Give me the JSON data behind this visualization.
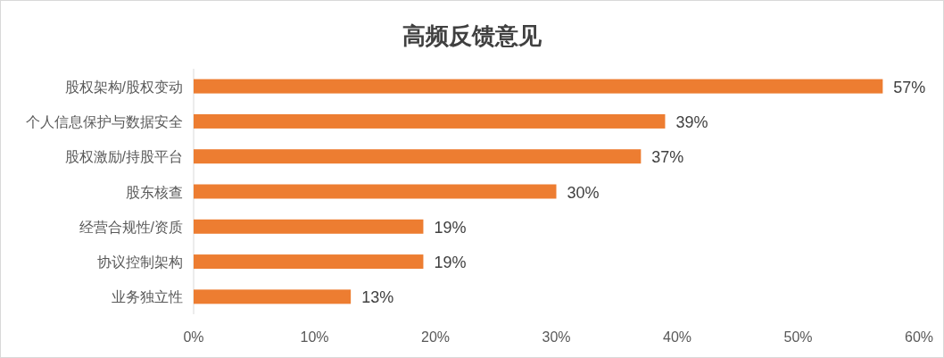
{
  "chart_data": {
    "type": "bar",
    "orientation": "horizontal",
    "title": "高频反馈意见",
    "categories": [
      "股权架构/股权变动",
      "个人信息保护与数据安全",
      "股权激励/持股平台",
      "股东核查",
      "经营合规性/资质",
      "协议控制架构",
      "业务独立性"
    ],
    "values": [
      57,
      39,
      37,
      30,
      19,
      19,
      13
    ],
    "value_labels": [
      "57%",
      "39%",
      "37%",
      "30%",
      "19%",
      "19%",
      "13%"
    ],
    "color": "#ed7d31",
    "xlim": [
      0,
      60
    ],
    "xticks": [
      {
        "value": 0,
        "label": "0%"
      },
      {
        "value": 10,
        "label": "10%"
      },
      {
        "value": 20,
        "label": "20%"
      },
      {
        "value": 30,
        "label": "30%"
      },
      {
        "value": 40,
        "label": "40%"
      },
      {
        "value": 50,
        "label": "50%"
      },
      {
        "value": 60,
        "label": "60%"
      }
    ],
    "grid": false
  }
}
